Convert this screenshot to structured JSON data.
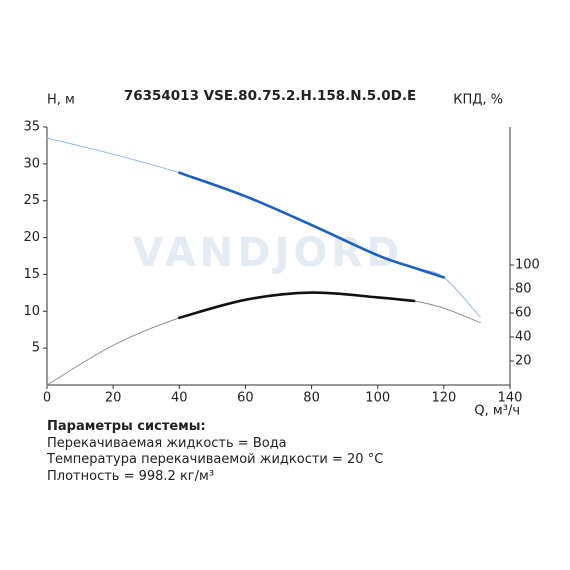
{
  "chart_data": {
    "type": "line",
    "title": "76354013 VSE.80.75.2.H.158.N.5.0D.E",
    "watermark": "VANDJORD",
    "y_label": "Н, м",
    "y2_label": "КПД, %",
    "x_label": "Q, м³/ч",
    "x": [
      0,
      20,
      40,
      60,
      80,
      100,
      111,
      120,
      131
    ],
    "series": [
      {
        "color": "#8fb3e6",
        "width": 0.9,
        "values": [
          33.5,
          31.3,
          28.8,
          25.6,
          21.7,
          17.6,
          15.9,
          14.6,
          9.2
        ]
      },
      {
        "color": "#1a5fc8",
        "width": 2.6,
        "values": [
          null,
          null,
          28.8,
          25.6,
          21.7,
          17.6,
          15.9,
          14.6,
          null
        ]
      },
      {
        "color": "#888888",
        "width": 0.9,
        "axis": "y2",
        "values": [
          0,
          33,
          56,
          71,
          77,
          73,
          70,
          64,
          52
        ]
      },
      {
        "color": "#111111",
        "width": 2.6,
        "axis": "y2",
        "values": [
          null,
          null,
          56,
          71,
          77,
          73,
          70,
          null,
          null
        ]
      }
    ],
    "xlim": [
      0,
      140
    ],
    "xticks": [
      0,
      20,
      40,
      60,
      80,
      100,
      120,
      140
    ],
    "ylim": [
      0,
      35
    ],
    "yticks": [
      5,
      10,
      15,
      20,
      25,
      30,
      35
    ],
    "y2lim": [
      0,
      215
    ],
    "y2ticks": [
      20,
      40,
      60,
      80,
      100
    ]
  },
  "info": {
    "heading": "Параметры системы:",
    "lines": [
      "Перекачиваемая жидкость = Вода",
      "Температура перекачиваемой жидкости = 20 °C",
      "Плотность = 998.2 кг/м³"
    ]
  }
}
